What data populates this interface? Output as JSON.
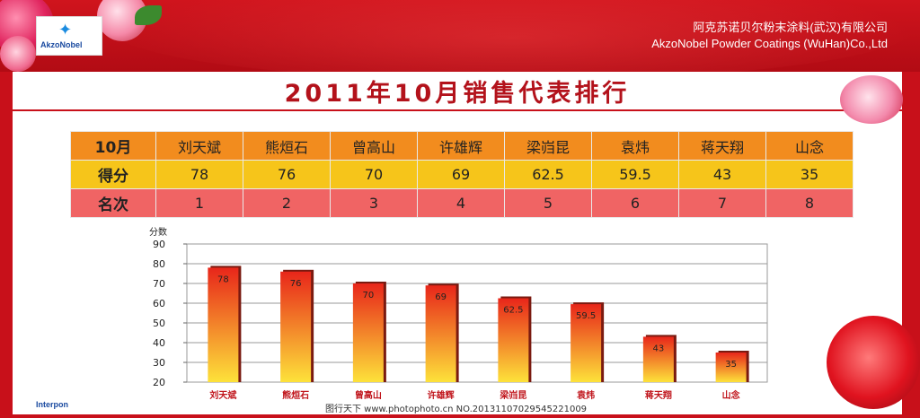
{
  "header": {
    "logo_text": "AkzoNobel",
    "company_cn": "阿克苏诺贝尔粉末涂料(武汉)有限公司",
    "company_en": "AkzoNobel Powder Coatings (WuHan)Co.,Ltd"
  },
  "title": "2011年10月销售代表排行",
  "table": {
    "header_label": "10月",
    "score_label": "得分",
    "rank_label": "名次",
    "names": [
      "刘天斌",
      "熊烜石",
      "曾高山",
      "许雄辉",
      "梁岿昆",
      "袁炜",
      "蒋天翔",
      "山念"
    ],
    "scores": [
      "78",
      "76",
      "70",
      "69",
      "62.5",
      "59.5",
      "43",
      "35"
    ],
    "ranks": [
      "1",
      "2",
      "3",
      "4",
      "5",
      "6",
      "7",
      "8"
    ]
  },
  "chart_data": {
    "type": "bar",
    "categories": [
      "刘天斌",
      "熊烜石",
      "曾高山",
      "许雄辉",
      "梁岿昆",
      "袁炜",
      "蒋天翔",
      "山念"
    ],
    "values": [
      78,
      76,
      70,
      69,
      62.5,
      59.5,
      43,
      35
    ],
    "data_labels": [
      "78",
      "76",
      "70",
      "69",
      "62.5",
      "59.5",
      "43",
      "35"
    ],
    "ylabel": "分数",
    "ylim": [
      20,
      90
    ],
    "yticks": [
      20,
      30,
      40,
      50,
      60,
      70,
      80,
      90
    ],
    "grid": true,
    "bar_colors": {
      "top": "#e8261a",
      "bottom": "#fde23a"
    },
    "label_color": "#c0141b"
  },
  "footer": {
    "brand": "Interpon",
    "watermark": "图行天下 www.photophoto.cn  NO.20131107029545221009"
  },
  "colors": {
    "brand_red": "#c8101a",
    "title_red": "#b3121b"
  }
}
